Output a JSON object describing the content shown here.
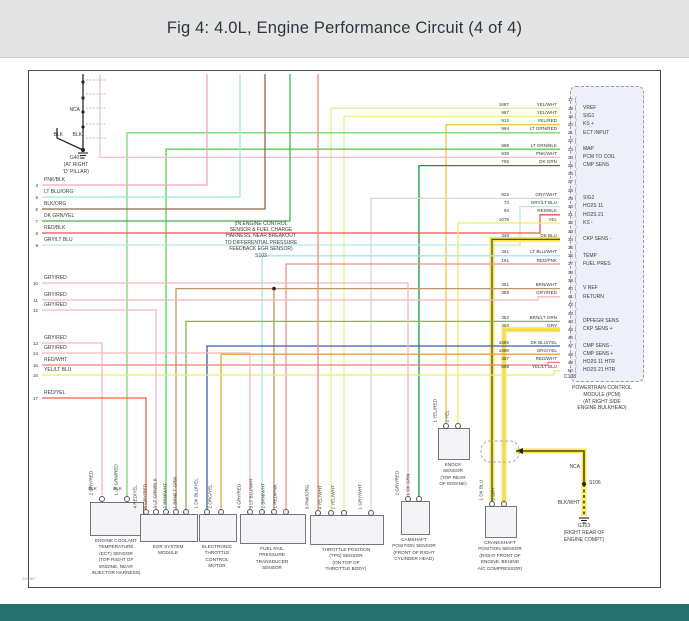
{
  "header": {
    "title": "Fig 4: 4.0L, Engine Performance Circuit (4 of 4)"
  },
  "diagram": {
    "doc_number": "203967",
    "top_left_ground": {
      "nca": "NCA",
      "blk1": "BLK",
      "blk2": "BLK",
      "id": "G401",
      "location_lines": [
        "(AT RIGHT",
        "'D' PILLAR)"
      ]
    },
    "splice_note": {
      "lines": [
        "(IN ENGINE CONTROL",
        "SENSOR & FUEL CHARGE",
        "HARNESS, NEAR BREAKOUT",
        "TO DIFFERENTIAL PRESSURE",
        "FEEDBACK EGR SENSOR)"
      ],
      "splice_id": "S103"
    },
    "left_wires": [
      {
        "pin": "4",
        "color": "PNK/BLK"
      },
      {
        "pin": "5",
        "color": "LT BLU/ORG"
      },
      {
        "pin": "6",
        "color": "BLK/ORG"
      },
      {
        "pin": "7",
        "color": "DK GRN/YEL"
      },
      {
        "pin": "8",
        "color": "RED/BLK"
      },
      {
        "pin": "9",
        "color": "GRY/LT BLU"
      },
      {
        "pin": "10",
        "color": "GRY/RED"
      },
      {
        "pin": "11",
        "color": "GRY/RED"
      },
      {
        "pin": "12",
        "color": "GRY/RED"
      },
      {
        "pin": "13",
        "color": "GRY/RED"
      },
      {
        "pin": "14",
        "color": "GRY/RED"
      },
      {
        "pin": "15",
        "color": "RED/WHT"
      },
      {
        "pin": "16",
        "color": "YEL/LT BLU"
      },
      {
        "pin": "17",
        "color": "RED/YEL"
      }
    ],
    "pcm": {
      "rows": [
        {
          "pin": "17"
        },
        {
          "pin": "18",
          "wire": "1687",
          "color": "YEL/WHT",
          "label": "VREF"
        },
        {
          "pin": "19",
          "wire": "987",
          "color": "YEL/WHT",
          "label": "SIG1"
        },
        {
          "pin": "20",
          "wire": "912",
          "color": "YEL/RED",
          "label": "KS +"
        },
        {
          "pin": "21",
          "wire": "994",
          "color": "LT GRN/RED",
          "label": "ECT INPUT"
        },
        {
          "pin": "22"
        },
        {
          "pin": "23",
          "wire": "998",
          "color": "LT GRN/BLK",
          "label": "MAP"
        },
        {
          "pin": "24",
          "wire": "938",
          "color": "PNK/WHT",
          "label": "PCM TO COIL"
        },
        {
          "pin": "25",
          "wire": "795",
          "color": "DK GRN",
          "label": "CMP SENS"
        },
        {
          "pin": "26"
        },
        {
          "pin": "27"
        },
        {
          "pin": "28"
        },
        {
          "pin": "29",
          "wire": "922",
          "color": "GRY/WHT",
          "label": "SIG2"
        },
        {
          "pin": "30",
          "wire": "74",
          "color": "GRY/LT BLU",
          "label": "HO2S 11"
        },
        {
          "pin": "31",
          "wire": "94",
          "color": "RED/BLK",
          "label": "HO2S 21"
        },
        {
          "pin": "32",
          "wire": "1079",
          "color": "YEL",
          "label": "KS -"
        },
        {
          "pin": "33"
        },
        {
          "pin": "34",
          "wire": "349",
          "color": "DK BLU",
          "label": "CKP SENS -"
        },
        {
          "pin": "35"
        },
        {
          "pin": "36",
          "wire": "361",
          "color": "LT BLU/WHT",
          "label": "TEMP"
        },
        {
          "pin": "37",
          "wire": "161",
          "color": "RED/PNK",
          "label": "FUEL PRES"
        },
        {
          "pin": "38"
        },
        {
          "pin": "39"
        },
        {
          "pin": "40",
          "wire": "351",
          "color": "BRN/WHT",
          "label": "V REF"
        },
        {
          "pin": "41",
          "wire": "359",
          "color": "GRY/RED",
          "label": "RETURN"
        },
        {
          "pin": "42"
        },
        {
          "pin": "43"
        },
        {
          "pin": "44",
          "wire": "352",
          "color": "BRN/LT GRN",
          "label": "DPFEGR SENS"
        },
        {
          "pin": "45",
          "wire": "350",
          "color": "GRY",
          "label": "CKP SENS +"
        },
        {
          "pin": "46"
        },
        {
          "pin": "47",
          "wire": "1689",
          "color": "DK BLU/YEL",
          "label": "CMP SENS -"
        },
        {
          "pin": "48",
          "wire": "1688",
          "color": "ORG/YEL",
          "label": "CMP SENS +"
        },
        {
          "pin": "49",
          "wire": "387",
          "color": "RED/WHT",
          "label": "HO2S 11 HTR"
        },
        {
          "pin": "50",
          "wire": "988",
          "color": "YEL/LT BLU",
          "label": "HO2S 21 HTR"
        }
      ],
      "connector_id": "C138",
      "name_lines": [
        "POWERTRAIN CONTROL",
        "MODULE (PCM)",
        "(AT RIGHT SIDE",
        "ENGINE BULKHEAD)"
      ]
    },
    "components": [
      {
        "name_lines": [
          "ENGINE COOLANT",
          "TEMPERATURE",
          "(ECT) SENSOR",
          "(TOP RIGHT OF",
          "ENGINE, NEAR",
          "INJECTOR HARNESS)"
        ],
        "pins": [
          "2 GRY/RED",
          "1 LT GRN/RED"
        ],
        "inner_labels": [
          "BLK",
          "BLK"
        ]
      },
      {
        "name_lines": [
          "EGR SYSTEM",
          "MODULE"
        ],
        "pins": [
          "4 RED/YEL",
          "6 GRY/RED",
          "3 LT GRN/BLK",
          "2 BRN/WHT",
          "1 BRN/LT GRN"
        ]
      },
      {
        "name_lines": [
          "ELECTRONIC",
          "THROTTLE",
          "CONTROL",
          "MOTOR"
        ],
        "pins": [
          "1 DK BLU/YEL",
          "2 ORG/YEL"
        ]
      },
      {
        "name_lines": [
          "FUEL RAIL",
          "PRESSURE",
          "TRANSDUCER",
          "SENSOR"
        ],
        "pins": [
          "4 GRY/RED",
          "3 LT BLU/WHT",
          "2 BRN/WHT",
          "1 RED/PNK"
        ]
      },
      {
        "name_lines": [
          "THROTTLE POSITION",
          "(TPS) SENSOR",
          "(ON TOP OF",
          "THROTTLE BODY)"
        ],
        "pins": [
          "3 PNK/ORG",
          "4 YEL/WHT",
          "2 YEL/WHT",
          "1 GRY/WHT"
        ]
      },
      {
        "name_lines": [
          "KNOCK",
          "SENSOR",
          "(TOP REAR",
          "OF ENGINE)"
        ],
        "pins": [
          "1 YEL/RED",
          "2 YEL"
        ]
      },
      {
        "name_lines": [
          "CAMSHAFT",
          "POSITION SENSOR",
          "(FRONT OF RIGHT",
          "CYLINDER HEAD)"
        ],
        "pins": [
          "2 GRY/RED",
          "1 DK GRN"
        ]
      },
      {
        "name_lines": [
          "CRANKSHAFT",
          "POSITION SENSOR",
          "(RIGHT FRONT OF",
          "ENGINE, BEHIND",
          "A/C COMPRESSOR)"
        ],
        "pins": [
          "1 DK BLU",
          "2 GRY"
        ]
      }
    ],
    "right_ground": {
      "nca": "NCA",
      "splice_id": "S106",
      "wire_color": "BLK/WHT",
      "id": "G103",
      "location_lines": [
        "(RIGHT REAR OF",
        "ENGINE COMPT)"
      ]
    },
    "colors": {
      "highlight": "#ffe93a",
      "PNK_BLK": "#f0a8c4",
      "LT_BLU_ORG": "#9fe3e9",
      "BLK_ORG": "#8f6b46",
      "DK_GRN_YEL": "#44b04a",
      "RED_BLK": "#e4554f",
      "GRY_LT_BLU": "#b9e6ef",
      "GRY_RED": "#f2b9bd",
      "RED_WHT": "#f07f76",
      "YEL_LT_BLU": "#e9ef63",
      "RED_YEL": "#f2603d",
      "YEL_WHT": "#efe98f",
      "YEL_RED": "#f5c33c",
      "LT_GRN_RED": "#73d973",
      "LT_GRN_BLK": "#57cf57",
      "PNK_WHT": "#f6bccb",
      "DK_GRN": "#1d9145",
      "GRY_WHT": "#d6d6d6",
      "YEL": "#f3ef55",
      "DK_BLU": "#2d4f93",
      "LT_BLU_WHT": "#a8e4ef",
      "RED_PNK": "#f08f8f",
      "BRN_WHT": "#bb9668",
      "BRN_LT_GRN": "#8fae62",
      "DK_BLU_YEL": "#3c5ea0",
      "ORG_YEL": "#f2a13c",
      "GRY": "#cbcbcb",
      "BLK": "#2a2a2a",
      "PNK_ORG": "#ef8a7a"
    }
  }
}
